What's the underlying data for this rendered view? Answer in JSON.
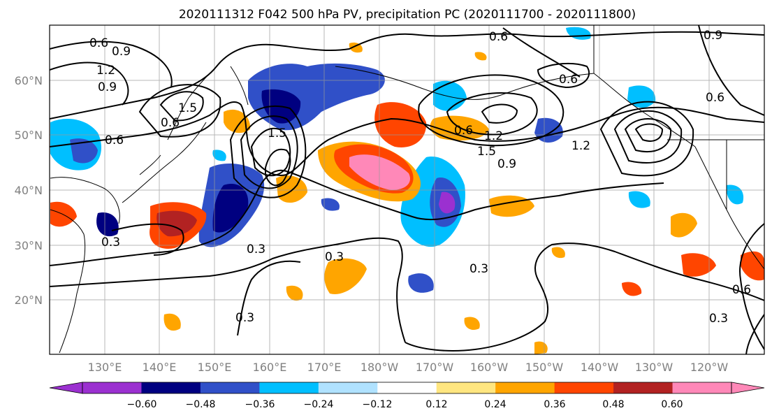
{
  "title": "2020111312 F042 500 hPa PV, precipitation PC (2020111700 - 2020111800)",
  "map": {
    "lat_labels": [
      "60°N",
      "50°N",
      "40°N",
      "30°N",
      "20°N"
    ],
    "lon_labels": [
      "130°E",
      "140°E",
      "150°E",
      "160°E",
      "170°E",
      "180°W",
      "170°W",
      "160°W",
      "150°W",
      "140°W",
      "130°W",
      "120°W"
    ],
    "grid_lines": true
  },
  "colorbar": {
    "tick_labels": [
      "−0.60",
      "−0.48",
      "−0.36",
      "−0.24",
      "−0.12",
      "0.12",
      "0.24",
      "0.36",
      "0.48",
      "0.60"
    ],
    "colors": [
      "#9b30d0",
      "#000080",
      "#3050c8",
      "#00bfff",
      "#b0e2ff",
      "#ffffff",
      "#ffe680",
      "#ffa500",
      "#ff4500",
      "#b22222",
      "#ff88b8"
    ],
    "extend": "both"
  },
  "contour_labels": [
    "0.6",
    "0.9",
    "1.2",
    "0.9",
    "1.5",
    "1.5",
    "0.6",
    "0.6",
    "0.6",
    "0.3",
    "0.3",
    "0.3",
    "0.3",
    "0.3",
    "0.6",
    "0.6",
    "1.2",
    "1.5",
    "0.9",
    "1.2",
    "0.6",
    "0.9",
    "0.6",
    "0.3"
  ]
}
